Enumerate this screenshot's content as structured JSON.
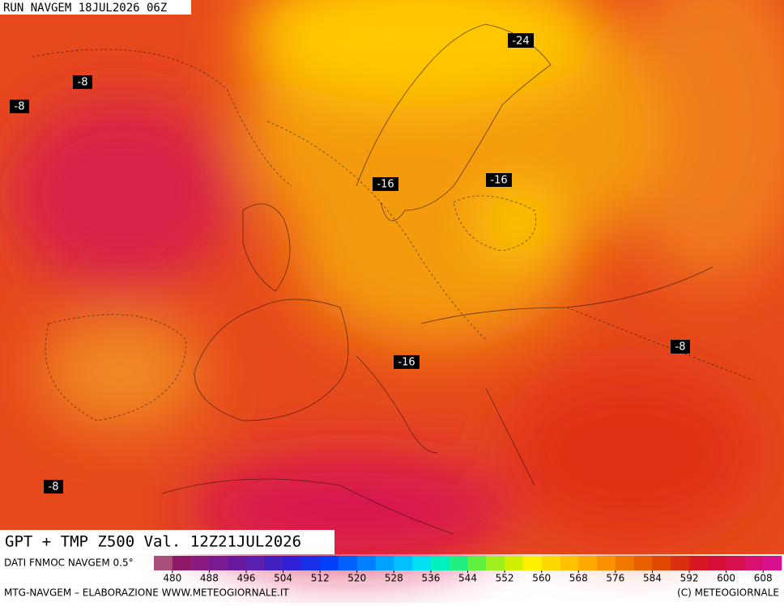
{
  "header": "RUN NAVGEM 18JUL2026 06Z",
  "labels": [
    "-24",
    "-8",
    "-8",
    "-16",
    "-16",
    "-16",
    "-8",
    "-8"
  ],
  "title": "GPT + TMP Z500 Val. 12Z21JUL2026",
  "source": "DATI FNMOC NAVGEM 0.5°",
  "colorbar": {
    "colors": [
      "#a8507a",
      "#901868",
      "#8a1a80",
      "#7a1a90",
      "#6a1aa0",
      "#5a20b0",
      "#4020c0",
      "#3020d8",
      "#1830e8",
      "#0040f8",
      "#0060ff",
      "#0080ff",
      "#00a0ff",
      "#00c0ff",
      "#00e0f0",
      "#00f0c0",
      "#20f080",
      "#60f040",
      "#a0f020",
      "#d0f000",
      "#fff000",
      "#ffd800",
      "#ffc000",
      "#ffa800",
      "#f89000",
      "#f07800",
      "#e86000",
      "#e04800",
      "#d83010",
      "#d81820",
      "#d81038",
      "#d81050",
      "#d81070",
      "#d81090"
    ],
    "ticks": [
      480,
      488,
      496,
      504,
      512,
      520,
      528,
      536,
      544,
      552,
      560,
      568,
      576,
      584,
      592,
      600,
      608
    ]
  },
  "footer_left": "MTG-NAVGEM – ELABORAZIONE WWW.METEOGIORNALE.IT",
  "footer_right": "(C) METEOGIORNALE"
}
